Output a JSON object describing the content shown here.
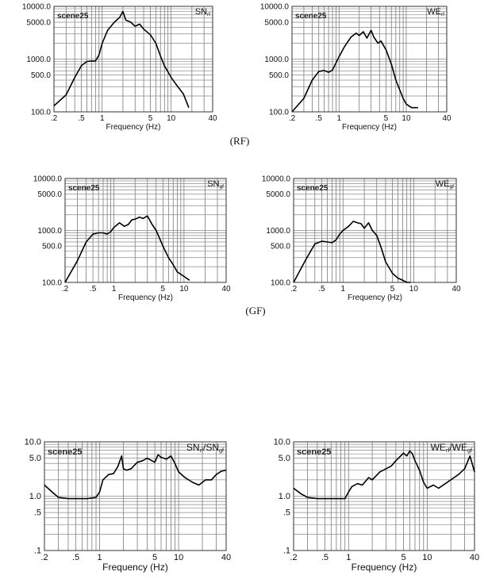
{
  "captions": [
    "(RF)",
    "(GF)"
  ],
  "chart_data": [
    {
      "type": "line",
      "title": "SN",
      "title_sub": "rf",
      "annotation": "scene25",
      "xlabel": "Frequency (Hz)",
      "ylabel": "",
      "xscale": "log",
      "yscale": "log",
      "xlim": [
        0.2,
        40
      ],
      "ylim": [
        100,
        10000
      ],
      "xticks": [
        0.2,
        0.5,
        1,
        5,
        10,
        40
      ],
      "xtick_labels": [
        ".2",
        ".5",
        "1",
        "5",
        "10",
        "40"
      ],
      "yticks": [
        100,
        500,
        1000,
        5000,
        10000
      ],
      "ytick_labels": [
        "100.0",
        "500.0",
        "1000.0",
        "5000.0",
        "10000.0"
      ],
      "grid": true,
      "series": [
        {
          "x": [
            0.2,
            0.3,
            0.4,
            0.5,
            0.6,
            0.7,
            0.8,
            0.9,
            1.0,
            1.2,
            1.5,
            1.8,
            2.0,
            2.2,
            2.6,
            3.0,
            3.5,
            4.0,
            5.0,
            6.0,
            7.0,
            8.0,
            10.0,
            12.0,
            15.0,
            18.0
          ],
          "y": [
            130,
            210,
            450,
            750,
            900,
            920,
            920,
            1200,
            2000,
            3500,
            5000,
            6200,
            8000,
            5500,
            5000,
            4200,
            4600,
            3700,
            2900,
            2000,
            1150,
            750,
            450,
            320,
            220,
            120
          ]
        }
      ]
    },
    {
      "type": "line",
      "title": "WE",
      "title_sub": "rf",
      "annotation": "scene25",
      "xlabel": "Frequency (Hz)",
      "ylabel": "",
      "xscale": "log",
      "yscale": "log",
      "xlim": [
        0.2,
        40
      ],
      "ylim": [
        100,
        10000
      ],
      "xticks": [
        0.2,
        0.5,
        1,
        5,
        10,
        40
      ],
      "xtick_labels": [
        ".2",
        ".5",
        "1",
        "5",
        "10",
        "40"
      ],
      "yticks": [
        100,
        500,
        1000,
        5000,
        10000
      ],
      "ytick_labels": [
        "100.0",
        "500.0",
        "1000.0",
        "5000.0",
        "10000.0"
      ],
      "grid": true,
      "series": [
        {
          "x": [
            0.2,
            0.3,
            0.4,
            0.5,
            0.6,
            0.7,
            0.8,
            1.0,
            1.2,
            1.5,
            1.8,
            2.0,
            2.3,
            2.6,
            3.0,
            3.3,
            3.8,
            4.2,
            5.0,
            6.0,
            7.0,
            8.0,
            9.0,
            10.0,
            12.0,
            15.0
          ],
          "y": [
            100,
            180,
            400,
            580,
            610,
            560,
            620,
            1100,
            1700,
            2600,
            3100,
            2800,
            3300,
            2500,
            3500,
            2600,
            2000,
            2200,
            1500,
            800,
            400,
            260,
            180,
            140,
            120,
            120
          ]
        }
      ]
    },
    {
      "type": "line",
      "title": "SN",
      "title_sub": "gf",
      "annotation": "scene25",
      "xlabel": "Frequency (Hz)",
      "ylabel": "",
      "xscale": "log",
      "yscale": "log",
      "xlim": [
        0.2,
        40
      ],
      "ylim": [
        100,
        10000
      ],
      "xticks": [
        0.2,
        0.5,
        1,
        5,
        10,
        40
      ],
      "xtick_labels": [
        ".2",
        ".5",
        "1",
        "5",
        "10",
        "40"
      ],
      "yticks": [
        100,
        500,
        1000,
        5000,
        10000
      ],
      "ytick_labels": [
        "100.0",
        "500.0",
        "1000.0",
        "5000.0",
        "10000.0"
      ],
      "grid": true,
      "series": [
        {
          "x": [
            0.2,
            0.3,
            0.4,
            0.5,
            0.6,
            0.7,
            0.8,
            0.9,
            1.0,
            1.2,
            1.4,
            1.6,
            1.8,
            2.0,
            2.3,
            2.6,
            3.0,
            3.5,
            4.0,
            5.0,
            6.0,
            7.0,
            8.0,
            10.0,
            12.0
          ],
          "y": [
            100,
            260,
            600,
            850,
            900,
            900,
            850,
            950,
            1150,
            1400,
            1200,
            1300,
            1600,
            1650,
            1800,
            1700,
            1900,
            1300,
            1000,
            500,
            300,
            220,
            160,
            130,
            110
          ]
        }
      ]
    },
    {
      "type": "line",
      "title": "WE",
      "title_sub": "gf",
      "annotation": "scene25",
      "xlabel": "Frequency (Hz)",
      "ylabel": "",
      "xscale": "log",
      "yscale": "log",
      "xlim": [
        0.2,
        40
      ],
      "ylim": [
        100,
        10000
      ],
      "xticks": [
        0.2,
        0.5,
        1,
        5,
        10,
        40
      ],
      "xtick_labels": [
        ".2",
        ".5",
        "1",
        "5",
        "10",
        "40"
      ],
      "yticks": [
        100,
        500,
        1000,
        5000,
        10000
      ],
      "ytick_labels": [
        "100.0",
        "500.0",
        "1000.0",
        "5000.0",
        "10000.0"
      ],
      "grid": true,
      "series": [
        {
          "x": [
            0.2,
            0.3,
            0.4,
            0.5,
            0.6,
            0.7,
            0.8,
            0.9,
            1.0,
            1.2,
            1.4,
            1.6,
            1.8,
            2.0,
            2.3,
            2.6,
            3.0,
            3.5,
            4.0,
            5.0,
            6.0,
            7.0,
            8.0,
            9.0
          ],
          "y": [
            100,
            280,
            550,
            620,
            600,
            580,
            660,
            850,
            1000,
            1200,
            1500,
            1400,
            1350,
            1100,
            1400,
            1000,
            800,
            450,
            250,
            150,
            120,
            110,
            100,
            100
          ]
        }
      ]
    },
    {
      "type": "line",
      "title": "SN",
      "title_sub": "rf",
      "title2": "/SN",
      "title2_sub": "gf",
      "annotation": "scene25",
      "xlabel": "Frequency (Hz)",
      "ylabel": "",
      "xscale": "log",
      "yscale": "log",
      "xlim": [
        0.2,
        40
      ],
      "ylim": [
        0.1,
        10
      ],
      "xticks": [
        0.2,
        0.5,
        1,
        5,
        10,
        40
      ],
      "xtick_labels": [
        ".2",
        ".5",
        "1",
        "5",
        "10",
        "40"
      ],
      "yticks": [
        0.1,
        0.5,
        1,
        5,
        10
      ],
      "ytick_labels": [
        ".1",
        ".5",
        "1.0",
        "5.0",
        "10.0"
      ],
      "grid": true,
      "series": [
        {
          "x": [
            0.2,
            0.25,
            0.3,
            0.4,
            0.5,
            0.7,
            0.9,
            1.0,
            1.1,
            1.3,
            1.5,
            1.7,
            1.9,
            2.0,
            2.2,
            2.5,
            3.0,
            3.5,
            4.0,
            5.0,
            5.5,
            6.0,
            7.0,
            8.0,
            9.0,
            10.0,
            12.0,
            15.0,
            18.0,
            22.0,
            26.0,
            30.0,
            35.0,
            40.0
          ],
          "y": [
            1.6,
            1.2,
            0.95,
            0.9,
            0.9,
            0.9,
            0.95,
            1.2,
            2.0,
            2.5,
            2.6,
            3.5,
            5.5,
            3.2,
            3.0,
            3.2,
            4.2,
            4.5,
            5.0,
            4.2,
            5.8,
            5.2,
            4.8,
            5.5,
            4.0,
            2.8,
            2.2,
            1.8,
            1.6,
            2.0,
            2.0,
            2.5,
            2.9,
            3.0
          ]
        }
      ]
    },
    {
      "type": "line",
      "title": "WE",
      "title_sub": "rf",
      "title2": "/WE",
      "title2_sub": "gf",
      "annotation": "scene25",
      "xlabel": "Frequency (Hz)",
      "ylabel": "",
      "xscale": "log",
      "yscale": "log",
      "xlim": [
        0.2,
        40
      ],
      "ylim": [
        0.1,
        10
      ],
      "xticks": [
        0.2,
        0.5,
        1,
        5,
        10,
        40
      ],
      "xtick_labels": [
        ".2",
        ".5",
        "1",
        "5",
        "10",
        "40"
      ],
      "yticks": [
        0.1,
        0.5,
        1,
        5,
        10
      ],
      "ytick_labels": [
        ".1",
        ".5",
        "1.0",
        "5.0",
        "10.0"
      ],
      "grid": true,
      "series": [
        {
          "x": [
            0.2,
            0.25,
            0.3,
            0.4,
            0.5,
            0.7,
            0.9,
            1.0,
            1.1,
            1.3,
            1.5,
            1.8,
            2.0,
            2.5,
            3.0,
            3.5,
            4.0,
            5.0,
            5.5,
            6.0,
            6.5,
            7.0,
            8.0,
            9.0,
            10.0,
            12.0,
            14.0,
            17.0,
            20.0,
            25.0,
            30.0,
            35.0,
            40.0
          ],
          "y": [
            1.4,
            1.1,
            0.95,
            0.9,
            0.9,
            0.9,
            0.9,
            1.2,
            1.5,
            1.7,
            1.6,
            2.2,
            2.0,
            2.8,
            3.2,
            3.6,
            4.5,
            6.2,
            5.5,
            6.8,
            6.0,
            4.5,
            3.0,
            1.8,
            1.4,
            1.6,
            1.4,
            1.7,
            2.0,
            2.5,
            3.2,
            5.5,
            2.8
          ]
        }
      ]
    }
  ]
}
